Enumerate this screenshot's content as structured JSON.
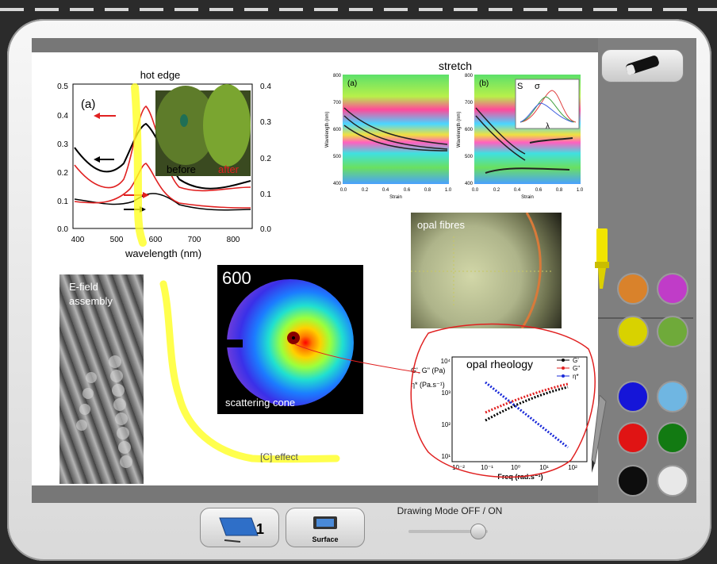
{
  "toolbar": {
    "drawing_mode_label": "Drawing Mode OFF / ON",
    "surface_label": "Surface",
    "screen_number": "1"
  },
  "tiles": {
    "spectrum": {
      "title": "hot edge",
      "panel_label": "(a)",
      "xlabel": "wavelength (nm)",
      "x_ticks": [
        "400",
        "500",
        "600",
        "700",
        "800"
      ],
      "y_left_ticks": [
        "0.5",
        "0.4",
        "0.3",
        "0.2",
        "0.1",
        "0.0"
      ],
      "y_right_ticks": [
        "0.4",
        "0.3",
        "0.2",
        "0.1",
        "0.0"
      ],
      "inset_before": "before",
      "inset_after": "after"
    },
    "stretch": {
      "title": "stretch",
      "panel_a": "(a)",
      "panel_b": "(b)",
      "xlabel": "Strain",
      "ylabel": "Wavelength (nm)",
      "y_ticks": [
        "800",
        "700",
        "600",
        "500",
        "400"
      ],
      "x_ticks": [
        "0.0",
        "0.2",
        "0.4",
        "0.6",
        "0.8",
        "1.0"
      ],
      "inset_s": "S",
      "inset_sigma": "σ",
      "inset_lambda": "λ"
    },
    "opal_fibres": {
      "label": "opal fibres"
    },
    "efield": {
      "label_line1": "E-field",
      "label_line2": "assembly"
    },
    "cone": {
      "value": "600",
      "label": "scattering cone"
    },
    "rheology": {
      "title": "opal rheology",
      "ylabel1": "G', G\" (Pa)",
      "ylabel2": "η* (Pa.s⁻¹)",
      "xlabel": "Freq (rad.s⁻¹)",
      "legend": [
        "G'",
        "G\"",
        "η*"
      ],
      "y_ticks": [
        "10⁴",
        "10³",
        "10²",
        "10¹"
      ],
      "x_ticks": [
        "10⁻²",
        "10⁻¹",
        "10⁰",
        "10¹",
        "10²"
      ]
    },
    "annotation": {
      "label": "[C] effect"
    }
  },
  "palette": {
    "colors": [
      "#d9822b",
      "#c03cc8",
      "#d8d200",
      "#6faa3a",
      "#1515d8",
      "#6fb6e2",
      "#e01414",
      "#127a12",
      "#0d0d0d",
      "#e8e8e8"
    ]
  }
}
